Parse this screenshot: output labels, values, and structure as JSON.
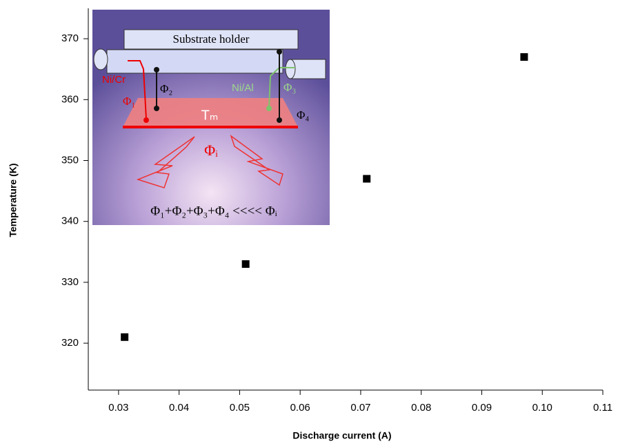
{
  "chart_data": {
    "type": "scatter",
    "x_label": "Discharge current (A)",
    "y_label": "Temperature (K)",
    "x": [
      0.031,
      0.051,
      0.071,
      0.097
    ],
    "series": [
      {
        "name": "Temperature",
        "color": "#000000",
        "values": [
          321,
          333,
          347,
          367
        ]
      }
    ],
    "xlim": [
      0.025,
      0.11
    ],
    "ylim": [
      312.3,
      375
    ],
    "xticks": [
      0.03,
      0.04,
      0.05,
      0.06,
      0.07,
      0.08,
      0.09,
      {
        "value": 0.1,
        "label": "0.10"
      },
      0.11
    ],
    "yticks": [
      320,
      330,
      340,
      350,
      360,
      370
    ],
    "inset": {
      "substrate": "Substrate holder",
      "ni_cr": "Ni/Cr",
      "ni_al": "Ni/Al",
      "phi1": "Φ₁",
      "phi2": "Φ₂",
      "phi3": "Φ₃",
      "phi4": "Φ₄",
      "tm": "Tₘ",
      "phii": "Φᵢ",
      "equation": "Φ₁+Φ₂+Φ₃+Φ₄ <<<< Φᵢ"
    }
  }
}
